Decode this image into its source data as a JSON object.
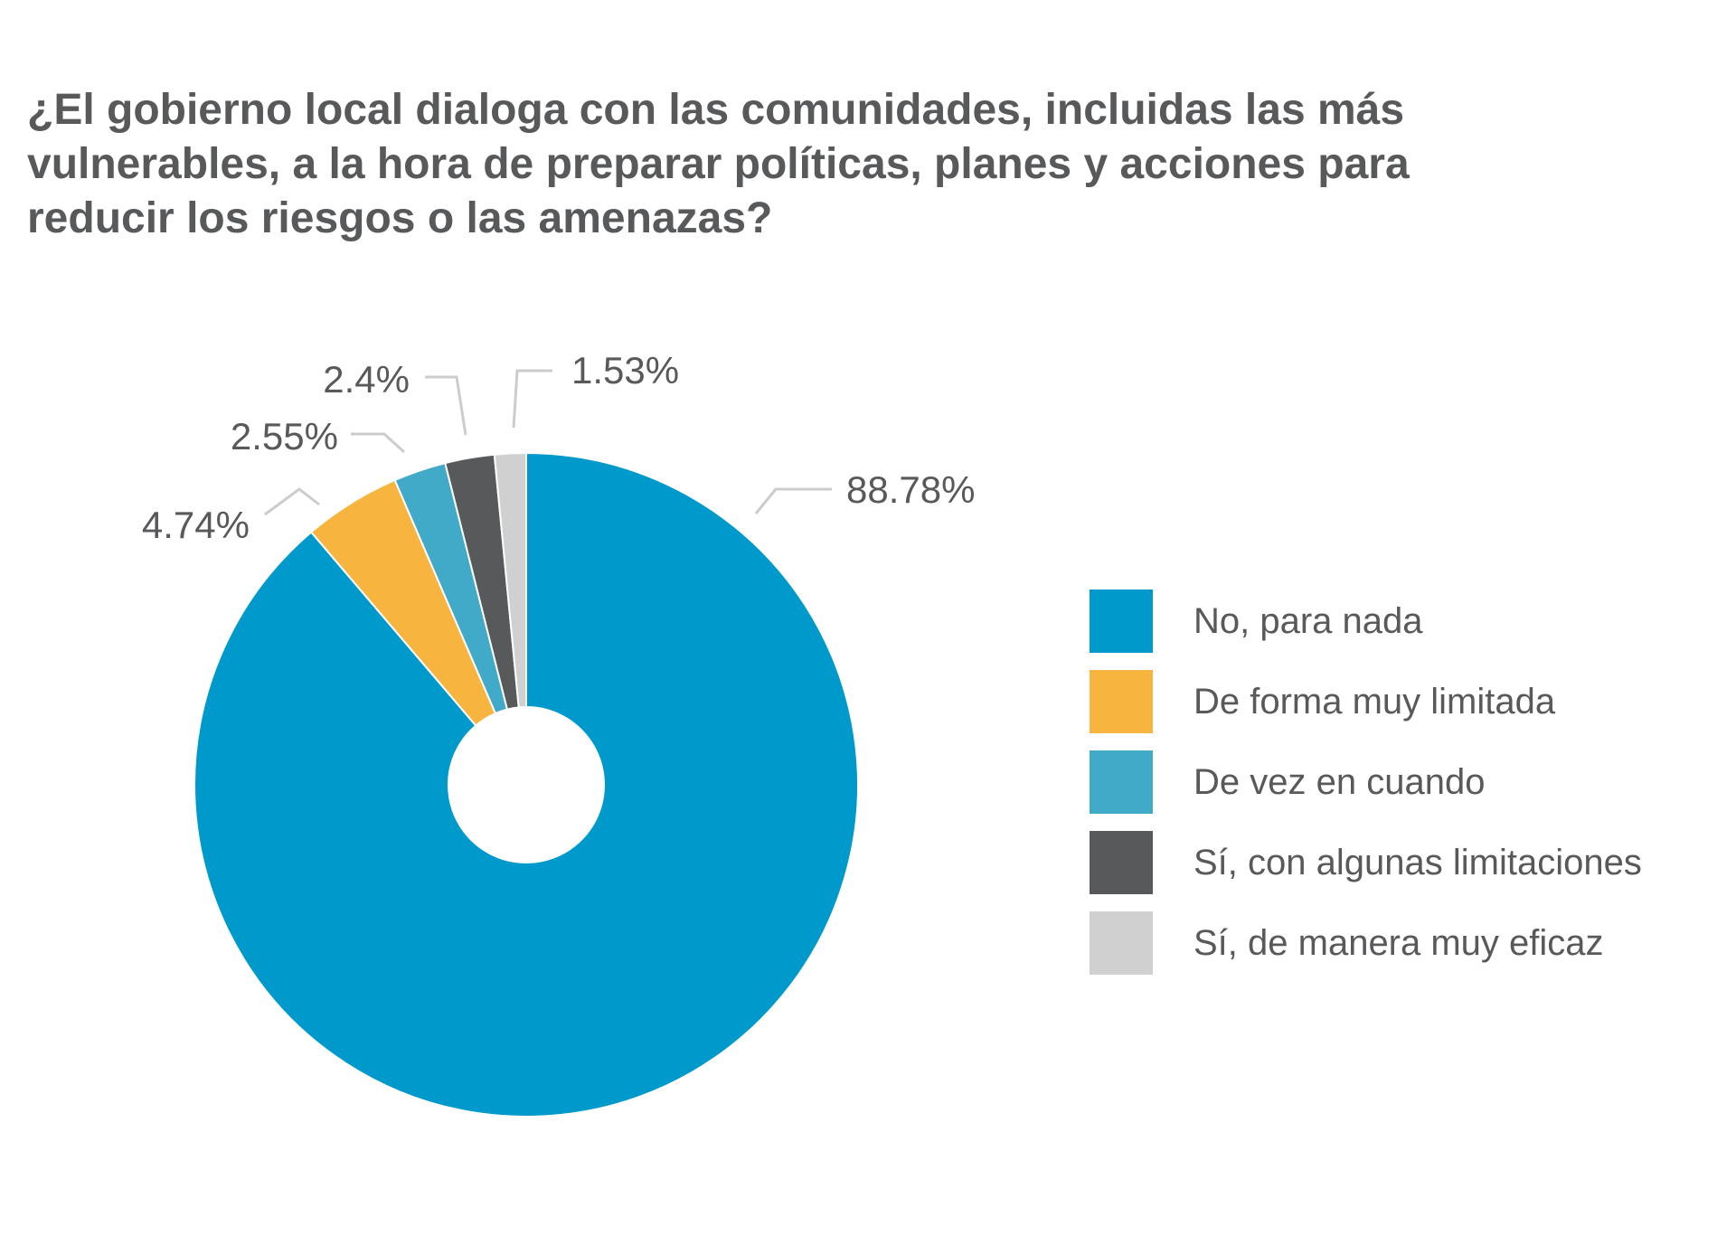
{
  "chart_data": {
    "type": "pie",
    "title_lines": [
      "¿El gobierno local dialoga con las comunidades, incluidas las más",
      "vulnerables, a la hora de preparar políticas, planes y acciones para",
      "reducir los riesgos o las amenazas?"
    ],
    "series": [
      {
        "name": "No, para nada",
        "value": 88.78,
        "label": "88.78%",
        "color": "#0099cc"
      },
      {
        "name": "De forma muy limitada",
        "value": 4.74,
        "label": "4.74%",
        "color": "#f7b540"
      },
      {
        "name": "De vez en cuando",
        "value": 2.55,
        "label": "2.55%",
        "color": "#40aac8"
      },
      {
        "name": "Sí, con algunas limitaciones",
        "value": 2.4,
        "label": "2.4%",
        "color": "#58595b"
      },
      {
        "name": "Sí, de manera muy eficaz",
        "value": 1.53,
        "label": "1.53%",
        "color": "#d0d0d0"
      }
    ],
    "donut": true,
    "legend_position": "right",
    "text_color": "#58595b"
  }
}
